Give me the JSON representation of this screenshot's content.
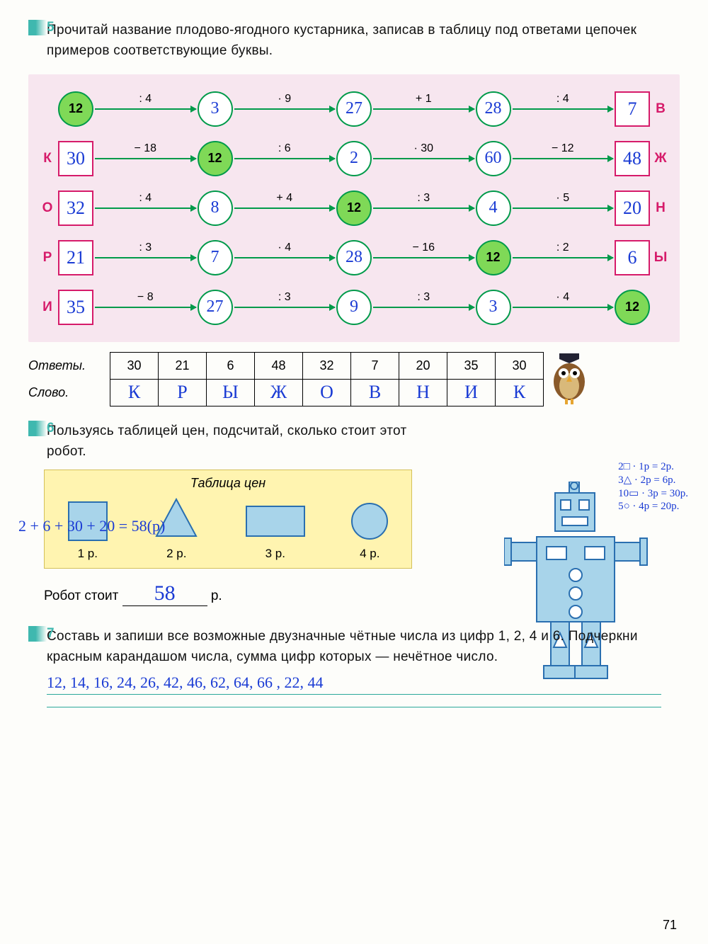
{
  "page_number": "71",
  "task5": {
    "number": "5",
    "text": "Прочитай название плодово-ягодного кустарника, записав в таблицу под ответами цепочек примеров соответствующие буквы.",
    "chains": [
      {
        "left": "",
        "right": "В",
        "nodes": [
          {
            "t": "cg",
            "v": "12"
          },
          {
            "t": "c",
            "v": "3"
          },
          {
            "t": "c",
            "v": "27"
          },
          {
            "t": "c",
            "v": "28"
          },
          {
            "t": "s",
            "v": "7"
          }
        ],
        "ops": [
          ": 4",
          "· 9",
          "+ 1",
          ": 4"
        ]
      },
      {
        "left": "К",
        "right": "Ж",
        "nodes": [
          {
            "t": "s",
            "v": "30"
          },
          {
            "t": "cg",
            "v": "12"
          },
          {
            "t": "c",
            "v": "2"
          },
          {
            "t": "c",
            "v": "60"
          },
          {
            "t": "s",
            "v": "48"
          }
        ],
        "ops": [
          "− 18",
          ": 6",
          "· 30",
          "− 12"
        ]
      },
      {
        "left": "О",
        "right": "Н",
        "nodes": [
          {
            "t": "s",
            "v": "32"
          },
          {
            "t": "c",
            "v": "8"
          },
          {
            "t": "cg",
            "v": "12"
          },
          {
            "t": "c",
            "v": "4"
          },
          {
            "t": "s",
            "v": "20"
          }
        ],
        "ops": [
          ": 4",
          "+ 4",
          ": 3",
          "· 5"
        ]
      },
      {
        "left": "Р",
        "right": "Ы",
        "nodes": [
          {
            "t": "s",
            "v": "21"
          },
          {
            "t": "c",
            "v": "7"
          },
          {
            "t": "c",
            "v": "28"
          },
          {
            "t": "cg",
            "v": "12"
          },
          {
            "t": "s",
            "v": "6"
          }
        ],
        "ops": [
          ": 3",
          "· 4",
          "− 16",
          ": 2"
        ]
      },
      {
        "left": "И",
        "right": "",
        "nodes": [
          {
            "t": "s",
            "v": "35"
          },
          {
            "t": "c",
            "v": "27"
          },
          {
            "t": "c",
            "v": "9"
          },
          {
            "t": "c",
            "v": "3"
          },
          {
            "t": "cg",
            "v": "12"
          }
        ],
        "ops": [
          "− 8",
          ": 3",
          ": 3",
          "· 4"
        ]
      }
    ],
    "answers_label": "Ответы.",
    "word_label": "Слово.",
    "answers": [
      "30",
      "21",
      "6",
      "48",
      "32",
      "7",
      "20",
      "35",
      "30"
    ],
    "word": [
      "К",
      "Р",
      "Ы",
      "Ж",
      "О",
      "В",
      "Н",
      "И",
      "К"
    ]
  },
  "task6": {
    "number": "6",
    "text": "Пользуясь таблицей цен, подсчитай, сколько стоит этот робот.",
    "price_title": "Таблица цен",
    "prices": [
      "1 р.",
      "2 р.",
      "3 р.",
      "4 р."
    ],
    "calc_sum": "2 + 6 + 30 + 20 = 58(р)",
    "calc_notes": [
      "2□ · 1р = 2р.",
      "3△ · 2р = 6р.",
      "10▭ · 3р = 30р.",
      "5○ · 4р = 20р."
    ],
    "result_label_pre": "Робот стоит",
    "result_value": "58",
    "result_unit": "р."
  },
  "task7": {
    "number": "7",
    "text": "Составь и запиши все возможные двузначные чётные числа из цифр 1, 2, 4 и 6. Подчеркни красным карандашом числа, сумма цифр которых — нечётное число.",
    "answer": "12, 14, 16, 24, 26, 42, 46, 62, 64, 66 , 22, 44"
  },
  "colors": {
    "pink_bg": "#f7e6ef",
    "green_arrow": "#009a4a",
    "green_fill": "#7fd957",
    "magenta": "#d61b6a",
    "hand_blue": "#1a3bd4",
    "yellow_bg": "#fff4b0",
    "robot_fill": "#a8d4ea",
    "robot_stroke": "#2a6fb0"
  }
}
